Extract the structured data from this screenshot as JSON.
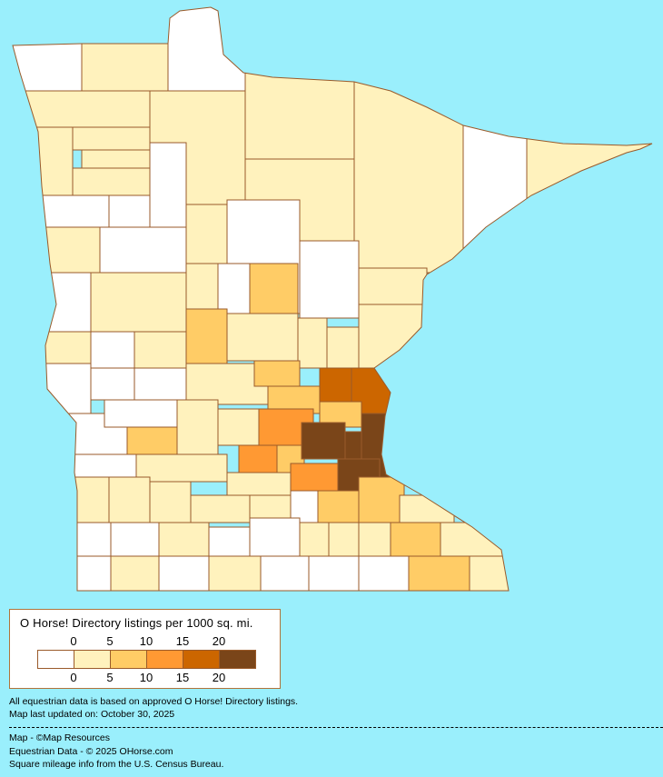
{
  "map": {
    "region": "Minnesota",
    "background_color": "#9aeffc",
    "border_color": "#9a5a2a"
  },
  "legend": {
    "title": "O Horse! Directory listings per 1000 sq. mi.",
    "top_labels": [
      "0",
      "5",
      "10",
      "15",
      "20"
    ],
    "bottom_labels": [
      "0",
      "5",
      "10",
      "15",
      "20"
    ],
    "colors": [
      "#ffffff",
      "#fff2bd",
      "#ffcc66",
      "#ff9933",
      "#cc6600",
      "#7a4519"
    ]
  },
  "footer": {
    "note1": "All equestrian data is based on approved O Horse! Directory listings.",
    "note2": "Map last updated on: October 30, 2025",
    "credit_map": "Map - ©Map Resources",
    "credit_data": "Equestrian Data - © 2025 OHorse.com",
    "credit_census": "Square mileage info from the U.S. Census Bureau."
  }
}
